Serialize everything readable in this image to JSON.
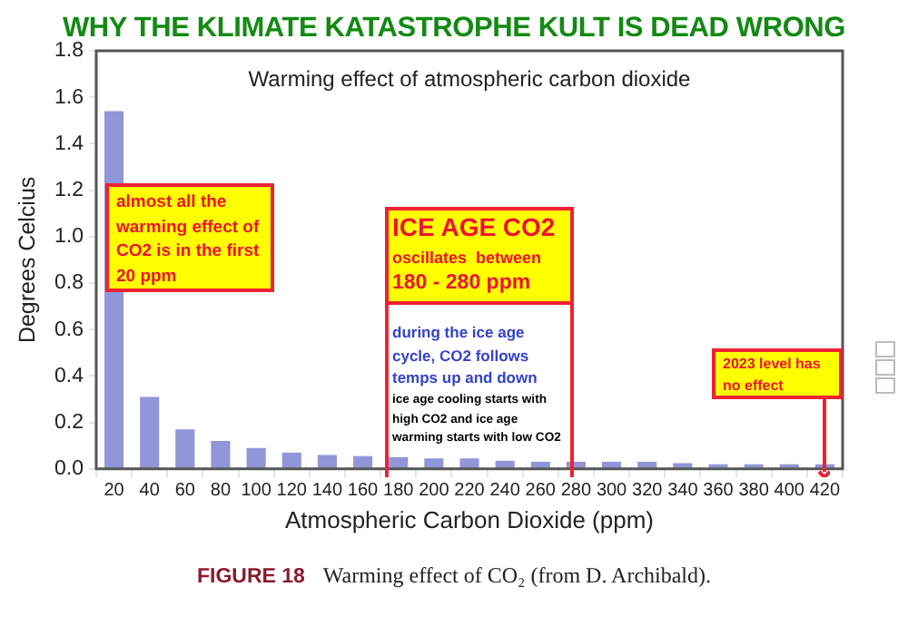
{
  "chart_data": {
    "type": "bar",
    "title": "WHY THE KLIMATE KATASTROPHE KULT IS DEAD WRONG",
    "subtitle": "Warming effect of atmospheric carbon dioxide",
    "xlabel": "Atmospheric Carbon Dioxide (ppm)",
    "ylabel": "Degrees Celcius",
    "categories": [
      "20",
      "40",
      "60",
      "80",
      "100",
      "120",
      "140",
      "160",
      "180",
      "200",
      "220",
      "240",
      "260",
      "280",
      "300",
      "320",
      "340",
      "360",
      "380",
      "400",
      "420"
    ],
    "values": [
      1.54,
      0.31,
      0.17,
      0.12,
      0.09,
      0.07,
      0.06,
      0.055,
      0.05,
      0.045,
      0.045,
      0.035,
      0.03,
      0.03,
      0.03,
      0.03,
      0.025,
      0.02,
      0.02,
      0.02,
      0.02
    ],
    "color": "#9196d8",
    "ylim": [
      0,
      1.8
    ],
    "yticks": [
      {
        "value": 0,
        "label": "0.0"
      },
      {
        "value": 0.2,
        "label": "0.2"
      },
      {
        "value": 0.4,
        "label": "0.4"
      },
      {
        "value": 0.6,
        "label": "0.6"
      },
      {
        "value": 0.8,
        "label": "0.8"
      },
      {
        "value": 1,
        "label": "1.0"
      },
      {
        "value": 1.2,
        "label": "1.2"
      },
      {
        "value": 1.4,
        "label": "1.4"
      },
      {
        "value": 1.6,
        "label": "1.6"
      },
      {
        "value": 1.8,
        "label": "1.8"
      }
    ],
    "grid": false,
    "legend": false,
    "annotations": [
      "almost all the warming effect of CO2 is in the first 20 ppm",
      "ICE AGE CO2",
      "oscillates  between",
      "180 - 280 ppm",
      "during the ice age cycle, CO2 follows temps up and down",
      "ice age cooling starts with high CO2 and ice age warming starts with low CO2",
      "2023 level has no effect",
      "FIGURE 18",
      "Warming effect of CO₂ (from D. Archibald)."
    ]
  }
}
